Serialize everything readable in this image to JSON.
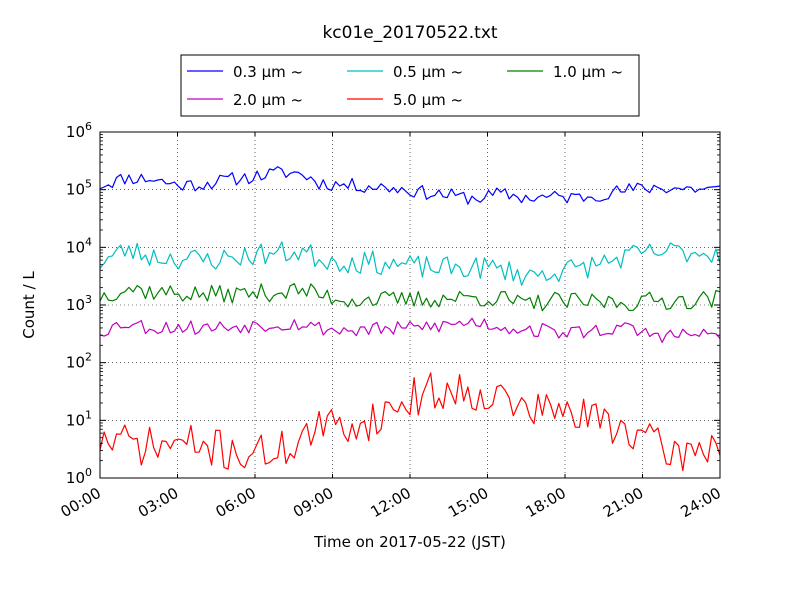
{
  "chart_data": {
    "type": "line",
    "title": "kc01e_20170522.txt",
    "xlabel": "Time on 2017-05-22 (JST)",
    "ylabel": "Count / L",
    "x_ticks": [
      "00:00",
      "03:00",
      "06:00",
      "09:00",
      "12:00",
      "15:00",
      "18:00",
      "21:00",
      "24:00"
    ],
    "x_range_hours": [
      0,
      24
    ],
    "y_scale": "log",
    "y_range": [
      1,
      1000000
    ],
    "y_ticks": [
      {
        "base": "10",
        "exp": "0",
        "value": 1
      },
      {
        "base": "10",
        "exp": "1",
        "value": 10
      },
      {
        "base": "10",
        "exp": "2",
        "value": 100
      },
      {
        "base": "10",
        "exp": "3",
        "value": 1000
      },
      {
        "base": "10",
        "exp": "4",
        "value": 10000
      },
      {
        "base": "10",
        "exp": "5",
        "value": 100000
      },
      {
        "base": "10",
        "exp": "6",
        "value": 1000000
      }
    ],
    "grid": true,
    "legend_position": "top-center",
    "series": [
      {
        "name": "0.3 μm ~",
        "color": "#0000ff",
        "anchors_hours": [
          0,
          1,
          2,
          3,
          4,
          5,
          6,
          7,
          7.8,
          8.5,
          9.5,
          10.5,
          11.5,
          12.5,
          13.5,
          14.5,
          15.5,
          16.5,
          17.5,
          18.5,
          19.5,
          20.5,
          21.5,
          22.5,
          24
        ],
        "anchors_values": [
          120000,
          160000,
          155000,
          120000,
          125000,
          150000,
          170000,
          200000,
          190000,
          130000,
          120000,
          115000,
          105000,
          90000,
          80000,
          70000,
          85000,
          72000,
          75000,
          73000,
          85000,
          100000,
          110000,
          105000,
          100000
        ],
        "jitter": 0.12,
        "seed": 11
      },
      {
        "name": "0.5 μm ~",
        "color": "#00bfbf",
        "anchors_hours": [
          0,
          1,
          2,
          3,
          4,
          5,
          6,
          7,
          7.8,
          8.5,
          9.5,
          10.5,
          11.5,
          12.5,
          13.5,
          14.5,
          15.5,
          16.5,
          17.5,
          18.5,
          19.5,
          20.5,
          21.5,
          22.5,
          24
        ],
        "anchors_values": [
          5500,
          9000,
          7000,
          6500,
          6000,
          6500,
          7500,
          8000,
          8500,
          6500,
          5500,
          5500,
          5000,
          4500,
          4300,
          4500,
          4300,
          3200,
          3800,
          4200,
          5500,
          7000,
          8000,
          8500,
          8000
        ],
        "jitter": 0.2,
        "seed": 23
      },
      {
        "name": "1.0 μm ~",
        "color": "#008000",
        "anchors_hours": [
          0,
          1,
          2,
          3,
          4,
          5,
          6,
          7,
          7.8,
          8.5,
          9.5,
          10.5,
          11.5,
          12.5,
          13.5,
          14.5,
          15.5,
          16.5,
          17.5,
          18.5,
          19.5,
          20.5,
          21.5,
          22.5,
          24
        ],
        "anchors_values": [
          1400,
          2000,
          1700,
          1600,
          1500,
          1550,
          1600,
          1700,
          1800,
          1500,
          1250,
          1250,
          1200,
          1250,
          1300,
          1350,
          1300,
          1000,
          1200,
          1100,
          1150,
          1100,
          1200,
          1200,
          1300
        ],
        "jitter": 0.16,
        "seed": 37
      },
      {
        "name": "2.0 μm ~",
        "color": "#bf00bf",
        "anchors_hours": [
          0,
          1,
          2,
          3,
          4,
          5,
          6,
          7,
          7.8,
          8.5,
          9.5,
          10.5,
          11.5,
          12.5,
          13.5,
          14.5,
          15.5,
          16.5,
          17.5,
          18.5,
          19.5,
          20.5,
          21.5,
          22.5,
          24
        ],
        "anchors_values": [
          350,
          500,
          400,
          420,
          400,
          420,
          450,
          470,
          480,
          400,
          360,
          380,
          380,
          420,
          450,
          520,
          420,
          380,
          350,
          330,
          380,
          380,
          300,
          300,
          310
        ],
        "jitter": 0.13,
        "seed": 53
      },
      {
        "name": "5.0 μm ~",
        "color": "#ff0000",
        "anchors_hours": [
          0,
          1,
          2,
          3,
          4,
          5,
          6,
          7,
          7.8,
          8.5,
          9.5,
          10.5,
          11.5,
          12.5,
          13.5,
          14.5,
          15.5,
          16.5,
          17.5,
          18.5,
          19.5,
          20.5,
          21.5,
          22.5,
          24
        ],
        "anchors_values": [
          4.5,
          4.0,
          3.5,
          4.0,
          3.5,
          3.0,
          2.5,
          3.0,
          5.0,
          7.0,
          8.0,
          10.0,
          18.0,
          30.0,
          32.0,
          33.0,
          25.0,
          15.0,
          15.0,
          12.0,
          10.0,
          7.0,
          3.5,
          2.5,
          4.5
        ],
        "jitter": 0.35,
        "seed": 71
      }
    ]
  }
}
